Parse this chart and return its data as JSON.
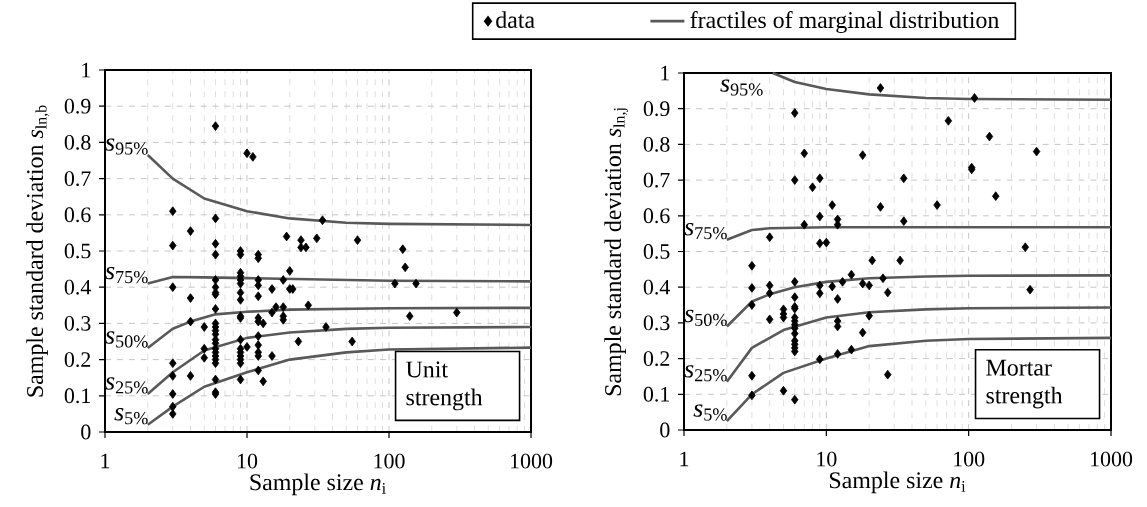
{
  "chart_data": [
    {
      "type": "scatter",
      "xlabel": "Sample size *n*$_{i}$",
      "ylabel": "Sample standard deviation *s*$_{ln,b}$",
      "xlim": [
        1,
        1000
      ],
      "ylim": [
        0,
        1
      ],
      "xticks": [
        1,
        10,
        100,
        1000
      ],
      "yticks": [
        0,
        0.1,
        0.2,
        0.3,
        0.4,
        0.5,
        0.6,
        0.7,
        0.8,
        0.9,
        1
      ],
      "log": "x",
      "grid": true,
      "legend": "top",
      "annotations": [
        "*s*$_{95%}$",
        "*s*$_{75%}$",
        "*s*$_{50%}$",
        "*s*$_{25%}$",
        "*s*$_{5%}$",
        "Unit strength"
      ],
      "series": [
        {
          "name": "data",
          "marker": "diamond",
          "color": "#000000",
          "x": [
            3,
            3,
            3,
            3,
            3,
            3,
            3,
            3,
            4,
            4,
            4,
            4,
            5,
            5,
            5,
            6,
            6,
            6,
            6,
            6,
            6,
            6,
            6,
            6,
            6,
            6,
            6,
            6,
            6,
            6,
            6,
            6,
            6,
            6,
            6,
            6,
            6,
            6,
            9,
            9,
            9,
            9,
            9,
            9,
            9,
            9,
            9,
            9,
            9,
            9,
            9,
            9,
            9,
            9,
            9,
            10,
            10,
            11,
            12,
            12,
            12,
            12,
            12,
            12,
            12,
            12,
            12,
            12,
            12,
            12,
            13,
            13,
            15,
            15,
            15,
            16,
            18,
            18,
            18,
            18,
            19,
            20,
            20,
            21,
            23,
            24,
            24,
            26,
            27,
            31,
            34,
            36,
            55,
            60,
            110,
            125,
            130,
            140,
            155,
            300
          ],
          "values": [
            0.61,
            0.515,
            0.4,
            0.19,
            0.155,
            0.105,
            0.07,
            0.05,
            0.555,
            0.37,
            0.305,
            0.155,
            0.29,
            0.23,
            0.205,
            0.845,
            0.59,
            0.52,
            0.49,
            0.42,
            0.4,
            0.385,
            0.38,
            0.34,
            0.3,
            0.29,
            0.28,
            0.27,
            0.255,
            0.245,
            0.23,
            0.22,
            0.21,
            0.2,
            0.19,
            0.145,
            0.11,
            0.105,
            0.5,
            0.49,
            0.44,
            0.43,
            0.42,
            0.41,
            0.385,
            0.365,
            0.32,
            0.315,
            0.255,
            0.23,
            0.22,
            0.21,
            0.2,
            0.19,
            0.145,
            0.77,
            0.235,
            0.76,
            0.49,
            0.48,
            0.42,
            0.405,
            0.375,
            0.315,
            0.305,
            0.265,
            0.24,
            0.22,
            0.21,
            0.17,
            0.3,
            0.14,
            0.395,
            0.33,
            0.21,
            0.345,
            0.42,
            0.345,
            0.32,
            0.31,
            0.54,
            0.445,
            0.395,
            0.395,
            0.25,
            0.53,
            0.51,
            0.51,
            0.35,
            0.535,
            0.585,
            0.29,
            0.25,
            0.53,
            0.41,
            0.505,
            0.455,
            0.32,
            0.41,
            0.33
          ]
        },
        {
          "name": "fractiles of marginal distribution",
          "type": "line",
          "color": "#595959",
          "x": [
            2,
            3,
            5,
            10,
            20,
            50,
            100,
            1000
          ],
          "values": [
            0.765,
            0.7,
            0.645,
            0.61,
            0.59,
            0.578,
            0.575,
            0.572
          ]
        },
        {
          "type": "line",
          "color": "#595959",
          "x": [
            2,
            3,
            5,
            10,
            100,
            1000
          ],
          "values": [
            0.41,
            0.428,
            0.427,
            0.425,
            0.418,
            0.416
          ]
        },
        {
          "type": "line",
          "color": "#595959",
          "x": [
            2,
            3,
            4,
            6,
            10,
            20,
            100,
            1000
          ],
          "values": [
            0.232,
            0.285,
            0.305,
            0.325,
            0.332,
            0.338,
            0.342,
            0.343
          ]
        },
        {
          "type": "line",
          "color": "#595959",
          "x": [
            2,
            3,
            5,
            10,
            20,
            50,
            100,
            1000
          ],
          "values": [
            0.105,
            0.165,
            0.225,
            0.26,
            0.275,
            0.285,
            0.288,
            0.29
          ]
        },
        {
          "type": "line",
          "color": "#595959",
          "x": [
            2,
            3,
            5,
            10,
            20,
            50,
            100,
            1000
          ],
          "values": [
            0.02,
            0.07,
            0.125,
            0.165,
            0.2,
            0.22,
            0.228,
            0.233
          ]
        }
      ]
    },
    {
      "type": "scatter",
      "xlabel": "Sample size *n*$_{i}$",
      "ylabel": "Sample standard deviation *s*$_{ln,j}$",
      "xlim": [
        1,
        1000
      ],
      "ylim": [
        0,
        1
      ],
      "xticks": [
        1,
        10,
        100,
        1000
      ],
      "yticks": [
        0,
        0.1,
        0.2,
        0.3,
        0.4,
        0.5,
        0.6,
        0.7,
        0.8,
        0.9,
        1
      ],
      "log": "x",
      "grid": true,
      "annotations": [
        "*s*$_{95%}$",
        "*s*$_{75%}$",
        "*s*$_{50%}$",
        "*s*$_{25%}$",
        "*s*$_{5%}$",
        "Mortar strength"
      ],
      "series": [
        {
          "marker": "diamond",
          "color": "#000000",
          "x": [
            3,
            3,
            3,
            3,
            3,
            4,
            4,
            4,
            4,
            5,
            5,
            5,
            5,
            6,
            6,
            6,
            6,
            6,
            6,
            6,
            6,
            6,
            6,
            6,
            6,
            6,
            6,
            6,
            6,
            7,
            7,
            8,
            9,
            9,
            9,
            9,
            9,
            9,
            10,
            11,
            11,
            12,
            12,
            12,
            12,
            12,
            12,
            13,
            15,
            15,
            18,
            18,
            18,
            20,
            20,
            21,
            24,
            24,
            25,
            27,
            27,
            33,
            35,
            35,
            60,
            72,
            105,
            105,
            110,
            140,
            155,
            250,
            270,
            300
          ],
          "values": [
            0.46,
            0.398,
            0.35,
            0.152,
            0.097,
            0.54,
            0.405,
            0.383,
            0.31,
            0.338,
            0.325,
            0.315,
            0.11,
            0.888,
            0.7,
            0.415,
            0.372,
            0.345,
            0.34,
            0.315,
            0.305,
            0.295,
            0.285,
            0.27,
            0.25,
            0.24,
            0.23,
            0.22,
            0.085,
            0.775,
            0.575,
            0.68,
            0.705,
            0.598,
            0.523,
            0.405,
            0.383,
            0.198,
            0.525,
            0.63,
            0.402,
            0.59,
            0.575,
            0.367,
            0.305,
            0.29,
            0.213,
            0.415,
            0.435,
            0.225,
            0.77,
            0.41,
            0.273,
            0.405,
            0.32,
            0.475,
            0.958,
            0.625,
            0.425,
            0.385,
            0.155,
            0.475,
            0.705,
            0.585,
            0.63,
            0.866,
            0.73,
            0.735,
            0.93,
            0.822,
            0.655,
            0.512,
            0.393,
            0.78
          ]
        },
        {
          "type": "line",
          "color": "#595959",
          "x": [
            4.2,
            6,
            10,
            20,
            50,
            100,
            1000
          ],
          "values": [
            1.0,
            0.975,
            0.955,
            0.94,
            0.93,
            0.927,
            0.925
          ]
        },
        {
          "type": "line",
          "color": "#595959",
          "x": [
            2,
            3,
            4,
            10,
            100,
            1000
          ],
          "values": [
            0.533,
            0.56,
            0.565,
            0.568,
            0.568,
            0.568
          ]
        },
        {
          "type": "line",
          "color": "#595959",
          "x": [
            2,
            3,
            4,
            6,
            10,
            20,
            50,
            100,
            1000
          ],
          "values": [
            0.29,
            0.36,
            0.38,
            0.4,
            0.415,
            0.425,
            0.43,
            0.432,
            0.433
          ]
        },
        {
          "type": "line",
          "color": "#595959",
          "x": [
            2,
            3,
            5,
            10,
            20,
            50,
            100,
            1000
          ],
          "values": [
            0.135,
            0.23,
            0.28,
            0.315,
            0.33,
            0.338,
            0.341,
            0.343
          ]
        },
        {
          "type": "line",
          "color": "#595959",
          "x": [
            2,
            3,
            5,
            10,
            20,
            50,
            100,
            1000
          ],
          "values": [
            0.025,
            0.1,
            0.16,
            0.2,
            0.235,
            0.25,
            0.255,
            0.258
          ]
        }
      ]
    }
  ]
}
